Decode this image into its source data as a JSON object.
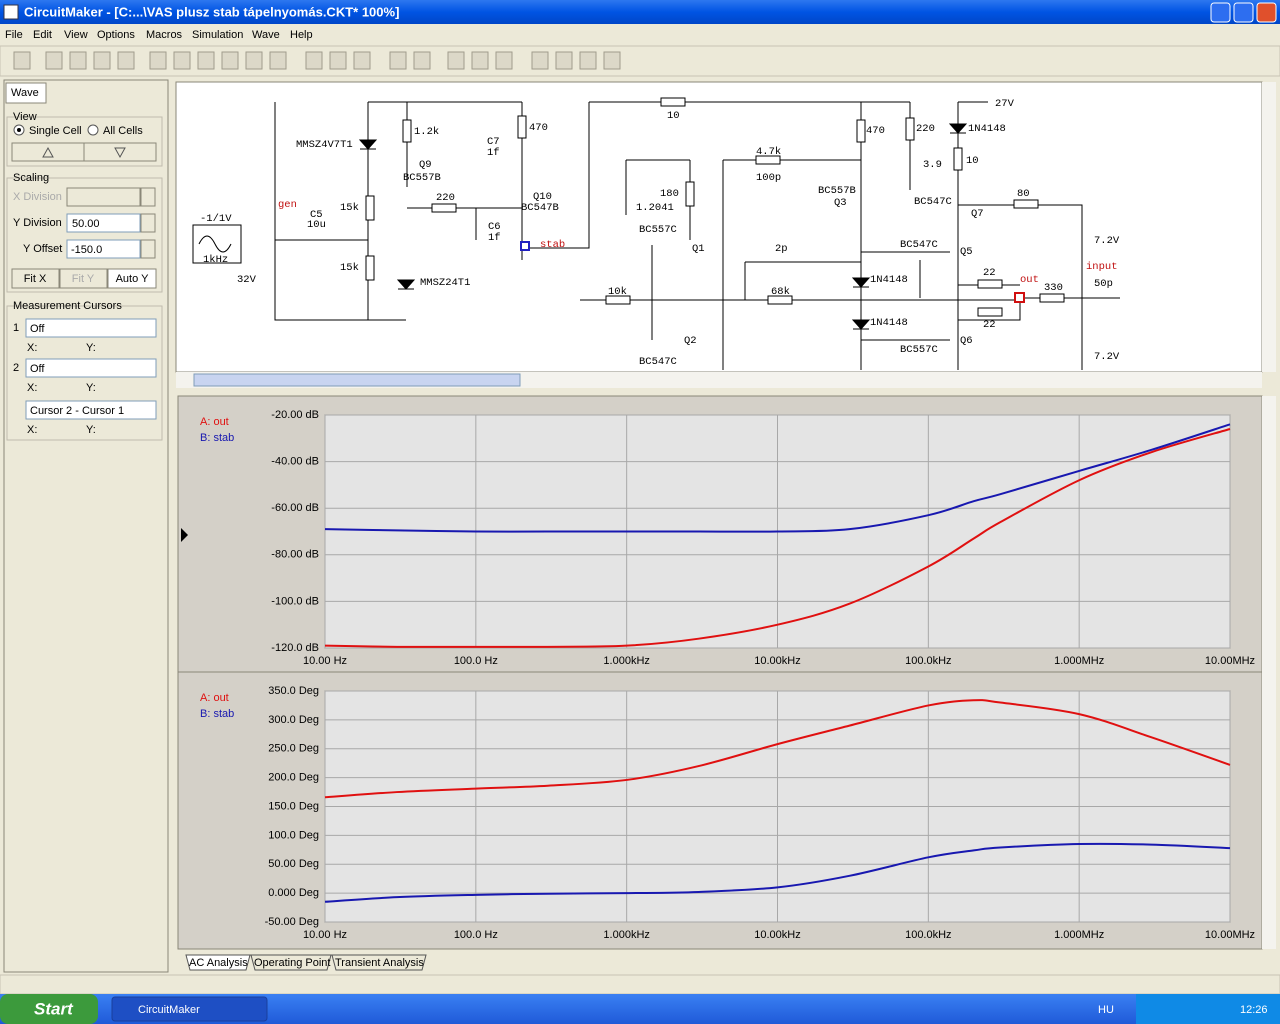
{
  "window": {
    "title": "CircuitMaker - [C:...\\VAS plusz stab tápelnyomás.CKT* 100%]"
  },
  "menu": [
    "File",
    "Edit",
    "View",
    "Options",
    "Macros",
    "Simulation",
    "Wave",
    "Help"
  ],
  "panel": {
    "tab": "Wave",
    "view": {
      "title": "View",
      "single": "Single Cell",
      "all": "All Cells"
    },
    "scaling": {
      "title": "Scaling",
      "x_division": "X Division",
      "y_division": "Y Division",
      "y_division_value": "50.00",
      "y_offset": "Y Offset",
      "y_offset_value": "-150.0",
      "fit_x": "Fit X",
      "fit_y": "Fit Y",
      "auto_y": "Auto Y"
    },
    "cursors": {
      "title": "Measurement Cursors",
      "c1": "1",
      "c1_value": "Off",
      "c2": "2",
      "c2_value": "Off",
      "x": "X:",
      "y": "Y:",
      "diff": "Cursor 2 - Cursor 1"
    }
  },
  "schematic": {
    "labels": [
      "-1/1V",
      "1kHz",
      "gen",
      "32V",
      "C5",
      "10u",
      "MMSZ4V7T1",
      "1.2k",
      "Q9",
      "BC557B",
      "15k",
      "15k",
      "MMSZ24T1",
      "C7",
      "1f",
      "220",
      "Q10",
      "BC547B",
      "470",
      "C6",
      "1f",
      "stab",
      "10",
      "4.7k",
      "100p",
      "180",
      "1.2041",
      "BC557C",
      "Q1",
      "470",
      "220",
      "3.9",
      "BC557B",
      "Q3",
      "27V",
      "1N4148",
      "10",
      "80",
      "BC547C",
      "Q7",
      "7.2V",
      "2p",
      "BC547C",
      "Q5",
      "input",
      "1N4148",
      "out",
      "22",
      "330",
      "50p",
      "10k",
      "68k",
      "1N4148",
      "22",
      "BC557C",
      "Q6",
      "Q2",
      "BC547C",
      "7.2V"
    ]
  },
  "charts": [
    {
      "type": "line",
      "xscale": "log",
      "grid": true,
      "xlim": [
        10,
        10000000
      ],
      "ylim": [
        -120,
        -20
      ],
      "xticks": [
        {
          "value": 10,
          "label": "10.00 Hz"
        },
        {
          "value": 100,
          "label": "100.0 Hz"
        },
        {
          "value": 1000,
          "label": "1.000kHz"
        },
        {
          "value": 10000,
          "label": "10.00kHz"
        },
        {
          "value": 100000,
          "label": "100.0kHz"
        },
        {
          "value": 1000000,
          "label": "1.000MHz"
        },
        {
          "value": 10000000,
          "label": "10.00MHz"
        }
      ],
      "yticks": [
        {
          "value": -20,
          "label": "-20.00 dB"
        },
        {
          "value": -40,
          "label": "-40.00 dB"
        },
        {
          "value": -60,
          "label": "-60.00 dB"
        },
        {
          "value": -80,
          "label": "-80.00 dB"
        },
        {
          "value": -100,
          "label": "-100.0 dB"
        },
        {
          "value": -120,
          "label": "-120.0 dB"
        }
      ],
      "x": [
        10,
        30,
        100,
        300,
        1000,
        3000,
        10000,
        30000,
        100000,
        200000,
        300000,
        1000000,
        3000000,
        10000000
      ],
      "series": [
        {
          "name": "A: out",
          "color": "#e01010",
          "values": [
            -119,
            -119.5,
            -119.5,
            -119.5,
            -119,
            -116,
            -110,
            -101,
            -85,
            -73,
            -66,
            -48,
            -36,
            -26
          ]
        },
        {
          "name": "B: stab",
          "color": "#1818b0",
          "values": [
            -69,
            -69.5,
            -70,
            -70,
            -70,
            -70,
            -70,
            -69,
            -63,
            -57,
            -54,
            -44,
            -35,
            -24
          ]
        }
      ]
    },
    {
      "type": "line",
      "xscale": "log",
      "grid": true,
      "xlim": [
        10,
        10000000
      ],
      "ylim": [
        -50,
        350
      ],
      "xticks": [
        {
          "value": 10,
          "label": "10.00 Hz"
        },
        {
          "value": 100,
          "label": "100.0 Hz"
        },
        {
          "value": 1000,
          "label": "1.000kHz"
        },
        {
          "value": 10000,
          "label": "10.00kHz"
        },
        {
          "value": 100000,
          "label": "100.0kHz"
        },
        {
          "value": 1000000,
          "label": "1.000MHz"
        },
        {
          "value": 10000000,
          "label": "10.00MHz"
        }
      ],
      "yticks": [
        {
          "value": 350,
          "label": "350.0 Deg"
        },
        {
          "value": 300,
          "label": "300.0 Deg"
        },
        {
          "value": 250,
          "label": "250.0 Deg"
        },
        {
          "value": 200,
          "label": "200.0 Deg"
        },
        {
          "value": 150,
          "label": "150.0 Deg"
        },
        {
          "value": 100,
          "label": "100.0 Deg"
        },
        {
          "value": 50,
          "label": "50.00 Deg"
        },
        {
          "value": 0,
          "label": "0.000 Deg"
        },
        {
          "value": -50,
          "label": "-50.00 Deg"
        }
      ],
      "x": [
        10,
        30,
        100,
        300,
        1000,
        3000,
        10000,
        30000,
        100000,
        200000,
        300000,
        1000000,
        3000000,
        10000000
      ],
      "series": [
        {
          "name": "A: out",
          "color": "#e01010",
          "values": [
            166,
            175,
            181,
            186,
            196,
            220,
            258,
            290,
            325,
            334,
            330,
            310,
            270,
            222
          ]
        },
        {
          "name": "B: stab",
          "color": "#1818b0",
          "values": [
            -15,
            -7,
            -3,
            -1,
            0,
            2,
            10,
            30,
            62,
            74,
            79,
            85,
            84,
            78
          ]
        }
      ]
    }
  ],
  "tabs": [
    "AC Analysis",
    "Operating Point",
    "Transient Analysis"
  ],
  "taskbar": {
    "start": "Start",
    "app": "CircuitMaker",
    "lang": "HU",
    "clock": "12:26"
  }
}
